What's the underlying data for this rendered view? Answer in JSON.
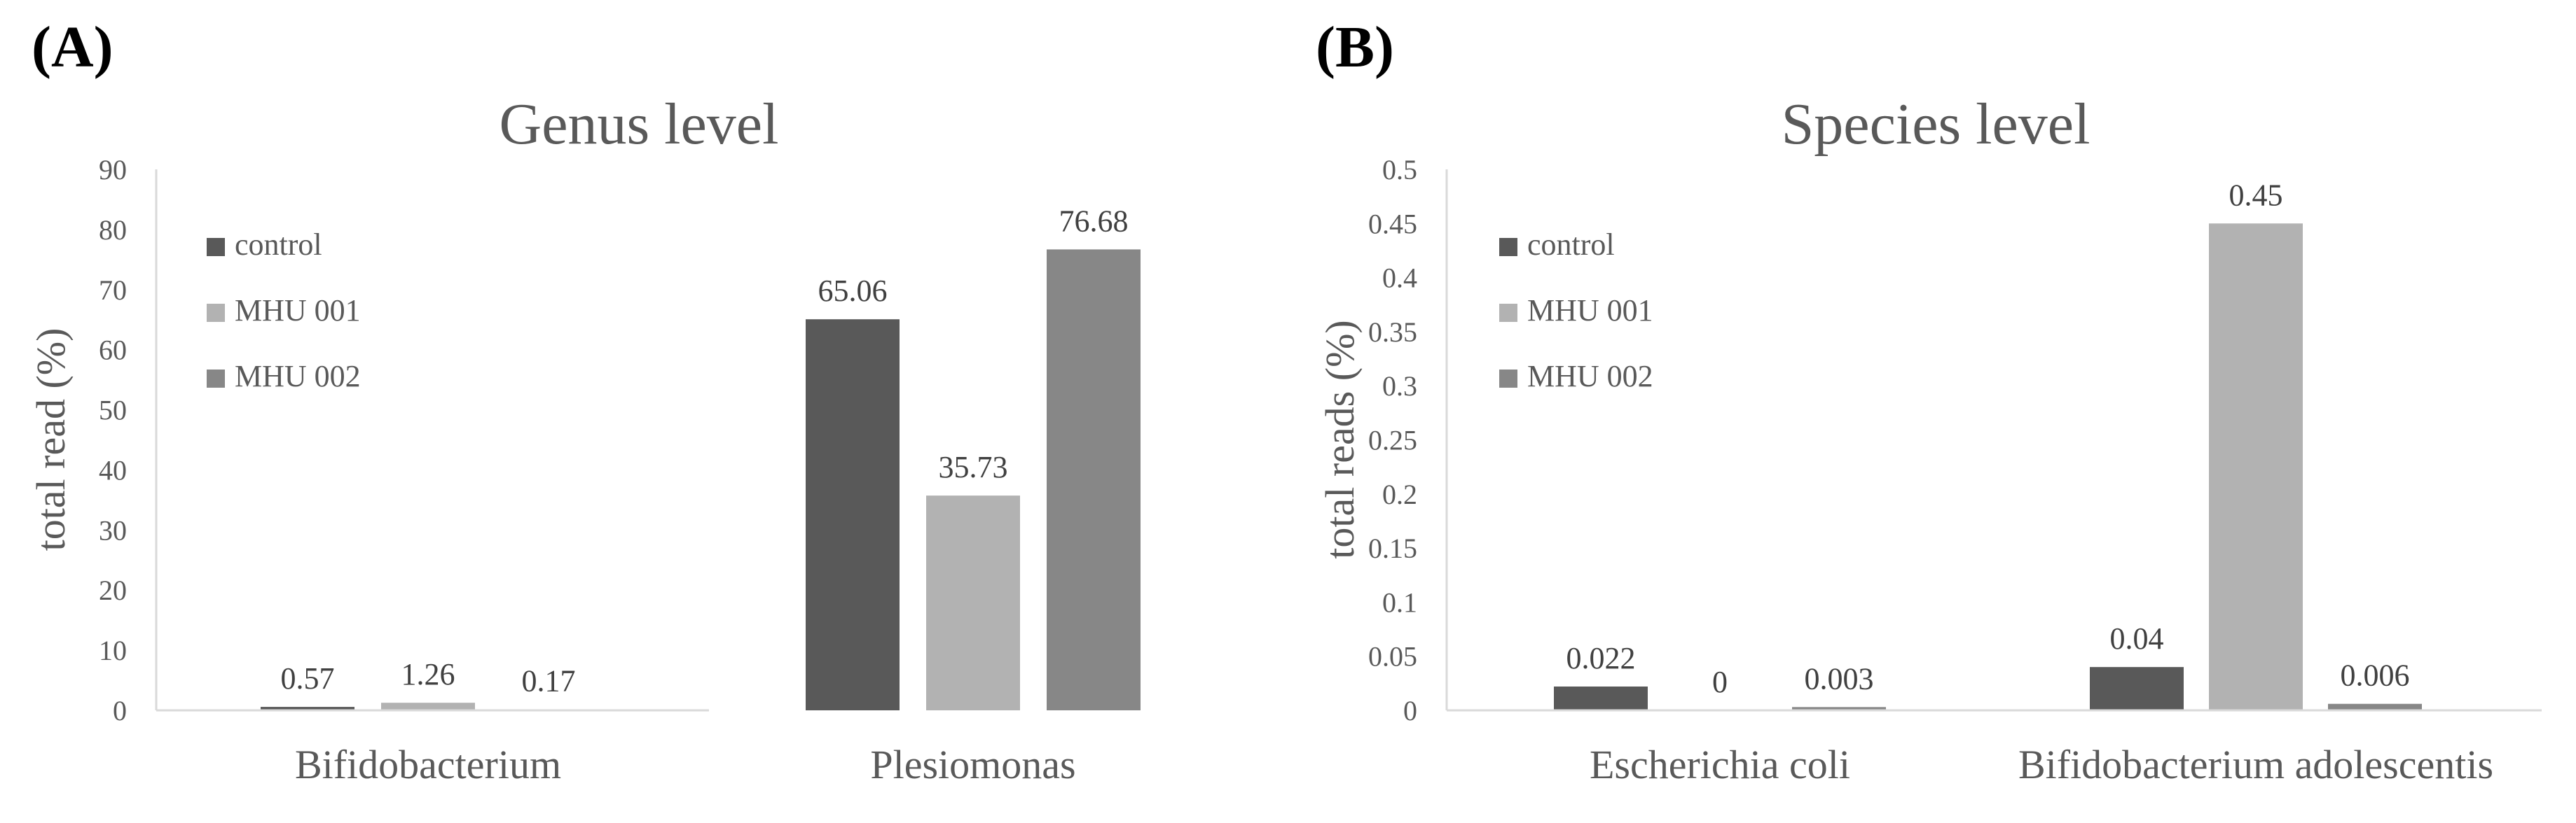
{
  "panels": [
    {
      "label": "(A)",
      "chart_data": {
        "type": "bar",
        "title": "Genus level",
        "xlabel": "",
        "ylabel": "total read (%)",
        "ylim": [
          0,
          90
        ],
        "yticks": [
          "0",
          "10",
          "20",
          "30",
          "40",
          "50",
          "60",
          "70",
          "80",
          "90"
        ],
        "ytick_values": [
          0,
          10,
          20,
          30,
          40,
          50,
          60,
          70,
          80,
          90
        ],
        "categories": [
          "Bifidobacterium",
          "Plesiomonas"
        ],
        "series": [
          {
            "name": "control",
            "color": "#595959",
            "values": [
              0.57,
              65.06
            ],
            "labels": [
              "0.57",
              "65.06"
            ]
          },
          {
            "name": "MHU 001",
            "color": "#b2b2b2",
            "values": [
              1.26,
              35.73
            ],
            "labels": [
              "1.26",
              "35.73"
            ]
          },
          {
            "name": "MHU 002",
            "color": "#878787",
            "values": [
              0.17,
              76.68
            ],
            "labels": [
              "0.17",
              "76.68"
            ]
          }
        ],
        "legend_position": "top-left",
        "grid": false
      }
    },
    {
      "label": "(B)",
      "chart_data": {
        "type": "bar",
        "title": "Species level",
        "xlabel": "",
        "ylabel": "total reads (%)",
        "ylim": [
          0,
          0.5
        ],
        "yticks": [
          "0",
          "0.05",
          "0.1",
          "0.15",
          "0.2",
          "0.25",
          "0.3",
          "0.35",
          "0.4",
          "0.45",
          "0.5"
        ],
        "ytick_values": [
          0,
          0.05,
          0.1,
          0.15,
          0.2,
          0.25,
          0.3,
          0.35,
          0.4,
          0.45,
          0.5
        ],
        "categories": [
          "Escherichia coli",
          "Bifidobacterium adolescentis"
        ],
        "series": [
          {
            "name": "control",
            "color": "#595959",
            "values": [
              0.022,
              0.04
            ],
            "labels": [
              "0.022",
              "0.04"
            ]
          },
          {
            "name": "MHU 001",
            "color": "#b2b2b2",
            "values": [
              0,
              0.45
            ],
            "labels": [
              "0",
              "0.45"
            ]
          },
          {
            "name": "MHU 002",
            "color": "#878787",
            "values": [
              0.003,
              0.006
            ],
            "labels": [
              "0.003",
              "0.006"
            ]
          }
        ],
        "legend_position": "top-left",
        "grid": false
      }
    }
  ]
}
